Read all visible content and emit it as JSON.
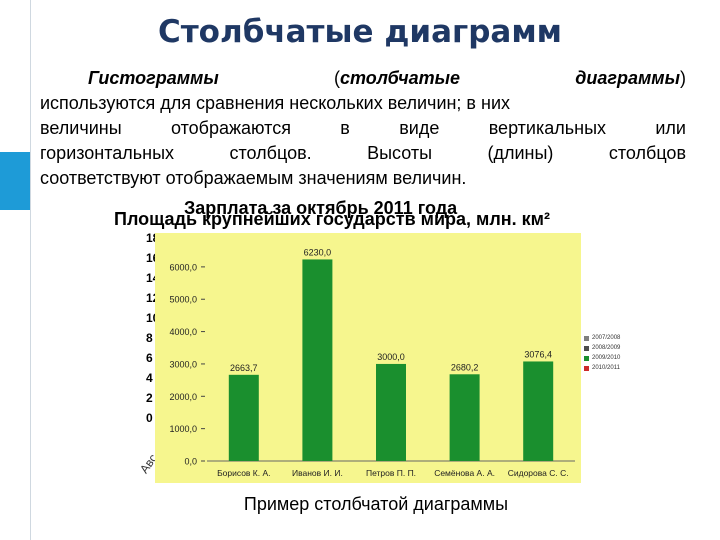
{
  "slide": {
    "title": "Столбчатые диаграмм",
    "para": {
      "lead_w1": "Гистограммы",
      "lead_w2": "(столбчатые",
      "lead_w3": "диаграммы)",
      "line1": "используются для сравнения нескольких величин; в них",
      "line2": "величины отображаются в виде вертикальных или",
      "line3": "горизонтальных столбцов. Высоты (длины) столбцов",
      "line4": "соответствуют отображаемым значениям величин."
    },
    "ghost_title_1": "Зарплата за октябрь 2011 года",
    "ghost_title_2": "Площадь крупнейших государств мира, млн. км²",
    "ghost_ticks": [
      "18",
      "16",
      "14",
      "12",
      "10",
      "8",
      "6",
      "4",
      "2",
      "0"
    ],
    "ghost_axis": "Авс",
    "caption": "Пример столбчатой диаграммы",
    "legend": [
      {
        "label": "2007/2008",
        "color": "#7f7f7f"
      },
      {
        "label": "2008/2009",
        "color": "#4d4d4d"
      },
      {
        "label": "2009/2010",
        "color": "#1a8f2e"
      },
      {
        "label": "2010/2011",
        "color": "#cc2a2a"
      }
    ]
  },
  "chart_data": {
    "type": "bar",
    "categories": [
      "Борисов К. А.",
      "Иванов И. И.",
      "Петров П. П.",
      "Семёнова А. А.",
      "Сидорова С. С."
    ],
    "values": [
      2663.7,
      6230.0,
      3000.0,
      2680.2,
      3076.4
    ],
    "value_labels": [
      "2663,7",
      "6230,0",
      "3000,0",
      "2680,2",
      "3076,4"
    ],
    "yticks": [
      "0,0",
      "1000,0",
      "2000,0",
      "3000,0",
      "4000,0",
      "5000,0",
      "6000,0"
    ],
    "ylim": [
      0,
      6800
    ],
    "bar_color": "#1a8f2e",
    "grid": false
  }
}
